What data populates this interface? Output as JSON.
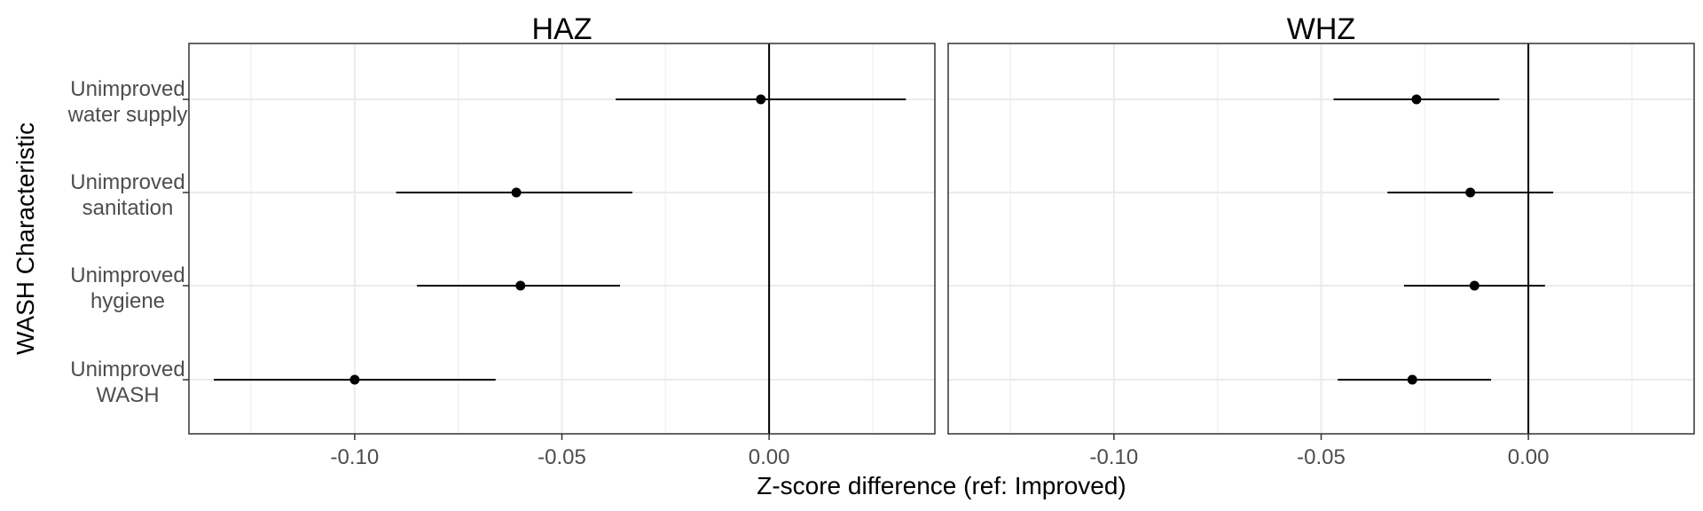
{
  "chart_data": {
    "type": "scatter",
    "subtype": "forest-plot-with-error-bars",
    "xlabel": "Z-score difference (ref: Improved)",
    "ylabel": "WASH Characteristic",
    "categories": [
      [
        "Unimproved",
        "water supply"
      ],
      [
        "Unimproved",
        "sanitation"
      ],
      [
        "Unimproved",
        "hygiene"
      ],
      [
        "Unimproved",
        "WASH"
      ]
    ],
    "xlim": [
      -0.14,
      0.04
    ],
    "xticks": [
      -0.1,
      -0.05,
      0.0
    ],
    "xtick_labels": [
      "-0.10",
      "-0.05",
      "0.00"
    ],
    "reference_line": 0,
    "grid": true,
    "panels": [
      {
        "title": "HAZ",
        "points": [
          {
            "estimate": -0.002,
            "lower": -0.037,
            "upper": 0.033
          },
          {
            "estimate": -0.061,
            "lower": -0.09,
            "upper": -0.033
          },
          {
            "estimate": -0.06,
            "lower": -0.085,
            "upper": -0.036
          },
          {
            "estimate": -0.1,
            "lower": -0.134,
            "upper": -0.066
          }
        ]
      },
      {
        "title": "WHZ",
        "points": [
          {
            "estimate": -0.027,
            "lower": -0.047,
            "upper": -0.007
          },
          {
            "estimate": -0.014,
            "lower": -0.034,
            "upper": 0.006
          },
          {
            "estimate": -0.013,
            "lower": -0.03,
            "upper": 0.004
          },
          {
            "estimate": -0.028,
            "lower": -0.046,
            "upper": -0.009
          }
        ]
      }
    ]
  }
}
